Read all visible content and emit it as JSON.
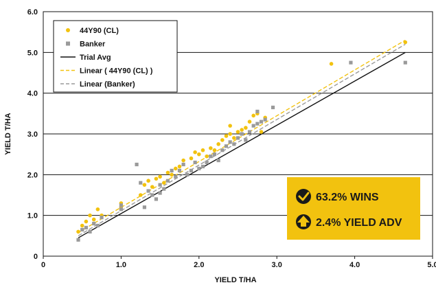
{
  "chart_data": {
    "type": "scatter",
    "xlabel": "YIELD T/HA",
    "ylabel": "YIELD T/HA",
    "xlim": [
      0,
      5
    ],
    "ylim": [
      0,
      6
    ],
    "x_ticks": [
      "0",
      "1.0",
      "2.0",
      "3.0",
      "4.0",
      "5.0"
    ],
    "y_ticks": [
      "0",
      "1.0",
      "2.0",
      "3.0",
      "4.0",
      "5.0",
      "6.0"
    ],
    "grid": "horizontal",
    "legend_position": "top-left",
    "series": [
      {
        "name": "44Y90 (CL)",
        "marker": "circle",
        "color": "#f2c20f",
        "points": [
          [
            0.45,
            0.6
          ],
          [
            0.5,
            0.75
          ],
          [
            0.55,
            0.85
          ],
          [
            0.6,
            1.0
          ],
          [
            0.65,
            0.9
          ],
          [
            0.7,
            1.15
          ],
          [
            0.75,
            1.0
          ],
          [
            1.0,
            1.3
          ],
          [
            1.0,
            1.2
          ],
          [
            1.25,
            1.5
          ],
          [
            1.3,
            1.75
          ],
          [
            1.35,
            1.85
          ],
          [
            1.4,
            1.7
          ],
          [
            1.45,
            1.9
          ],
          [
            1.5,
            1.95
          ],
          [
            1.55,
            1.8
          ],
          [
            1.6,
            2.05
          ],
          [
            1.65,
            2.0
          ],
          [
            1.7,
            2.15
          ],
          [
            1.75,
            2.2
          ],
          [
            1.8,
            2.35
          ],
          [
            1.9,
            2.4
          ],
          [
            1.95,
            2.55
          ],
          [
            2.0,
            2.5
          ],
          [
            2.05,
            2.6
          ],
          [
            2.1,
            2.45
          ],
          [
            2.15,
            2.65
          ],
          [
            2.2,
            2.6
          ],
          [
            2.25,
            2.75
          ],
          [
            2.3,
            2.85
          ],
          [
            2.35,
            2.95
          ],
          [
            2.4,
            3.0
          ],
          [
            2.45,
            2.9
          ],
          [
            2.5,
            3.05
          ],
          [
            2.55,
            3.1
          ],
          [
            2.6,
            3.15
          ],
          [
            2.65,
            3.3
          ],
          [
            2.7,
            3.45
          ],
          [
            2.75,
            3.5
          ],
          [
            2.8,
            3.05
          ],
          [
            2.85,
            3.4
          ],
          [
            2.4,
            3.2
          ],
          [
            3.7,
            4.72
          ],
          [
            4.65,
            5.25
          ]
        ]
      },
      {
        "name": "Banker",
        "marker": "square",
        "color": "#9a9a9a",
        "points": [
          [
            0.45,
            0.4
          ],
          [
            0.5,
            0.65
          ],
          [
            0.55,
            0.7
          ],
          [
            0.6,
            0.6
          ],
          [
            0.65,
            0.8
          ],
          [
            0.7,
            0.75
          ],
          [
            0.75,
            0.95
          ],
          [
            1.0,
            1.15
          ],
          [
            1.0,
            1.25
          ],
          [
            1.2,
            2.25
          ],
          [
            1.25,
            1.8
          ],
          [
            1.3,
            1.2
          ],
          [
            1.35,
            1.6
          ],
          [
            1.4,
            1.5
          ],
          [
            1.45,
            1.4
          ],
          [
            1.5,
            1.55
          ],
          [
            1.5,
            1.75
          ],
          [
            1.55,
            1.65
          ],
          [
            1.6,
            1.85
          ],
          [
            1.65,
            2.1
          ],
          [
            1.7,
            1.95
          ],
          [
            1.75,
            2.1
          ],
          [
            1.8,
            2.25
          ],
          [
            1.85,
            2.0
          ],
          [
            1.9,
            2.1
          ],
          [
            1.95,
            2.3
          ],
          [
            2.0,
            2.15
          ],
          [
            2.05,
            2.2
          ],
          [
            2.1,
            2.3
          ],
          [
            2.15,
            2.45
          ],
          [
            2.2,
            2.5
          ],
          [
            2.25,
            2.35
          ],
          [
            2.3,
            2.6
          ],
          [
            2.35,
            2.7
          ],
          [
            2.4,
            2.8
          ],
          [
            2.45,
            2.75
          ],
          [
            2.5,
            2.9
          ],
          [
            2.55,
            3.0
          ],
          [
            2.6,
            2.85
          ],
          [
            2.65,
            3.05
          ],
          [
            2.7,
            3.2
          ],
          [
            2.75,
            3.25
          ],
          [
            2.8,
            3.3
          ],
          [
            2.85,
            3.35
          ],
          [
            2.95,
            3.65
          ],
          [
            2.75,
            3.55
          ],
          [
            3.95,
            4.75
          ],
          [
            4.65,
            4.75
          ]
        ]
      }
    ],
    "lines": [
      {
        "name": "Trial Avg",
        "color": "#111111",
        "dash": "solid",
        "from": [
          0.45,
          0.45
        ],
        "to": [
          4.65,
          5.0
        ]
      },
      {
        "name": "Linear ( 44Y90 (CL) )",
        "color": "#f2c20f",
        "dash": "dashed",
        "from": [
          0.45,
          0.58
        ],
        "to": [
          4.65,
          5.3
        ]
      },
      {
        "name": "Linear (Banker)",
        "color": "#9a9a9a",
        "dash": "dashed",
        "from": [
          0.45,
          0.5
        ],
        "to": [
          4.65,
          5.2
        ]
      }
    ],
    "legend": [
      {
        "label": "44Y90 (CL)",
        "kind": "circle",
        "color": "#f2c20f"
      },
      {
        "label": "Banker",
        "kind": "square",
        "color": "#9a9a9a"
      },
      {
        "label": "Trial Avg",
        "kind": "line-solid",
        "color": "#111111"
      },
      {
        "label": "Linear ( 44Y90 (CL) )",
        "kind": "line-dashed",
        "color": "#f2c20f"
      },
      {
        "label": "Linear (Banker)",
        "kind": "line-dashed",
        "color": "#9a9a9a"
      }
    ],
    "callout": {
      "background": "#f2c20f",
      "wins_text": "63.2% WINS",
      "yield_text": "2.4% YIELD ADV",
      "wins_icon": "checkmark-circle-icon",
      "yield_icon": "up-arrow-circle-icon"
    }
  }
}
